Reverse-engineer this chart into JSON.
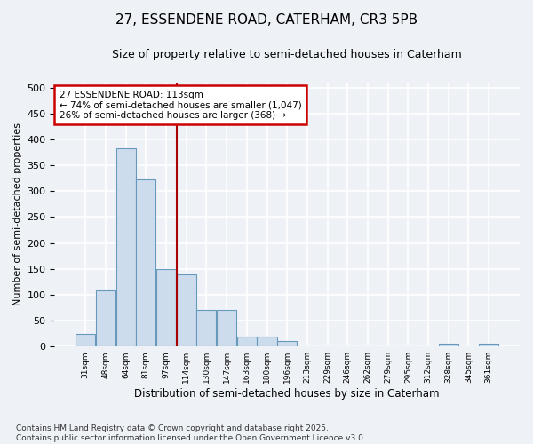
{
  "title_line1": "27, ESSENDENE ROAD, CATERHAM, CR3 5PB",
  "title_line2": "Size of property relative to semi-detached houses in Caterham",
  "xlabel": "Distribution of semi-detached houses by size in Caterham",
  "ylabel": "Number of semi-detached properties",
  "categories": [
    "31sqm",
    "48sqm",
    "64sqm",
    "81sqm",
    "97sqm",
    "114sqm",
    "130sqm",
    "147sqm",
    "163sqm",
    "180sqm",
    "196sqm",
    "213sqm",
    "229sqm",
    "246sqm",
    "262sqm",
    "279sqm",
    "295sqm",
    "312sqm",
    "328sqm",
    "345sqm",
    "361sqm"
  ],
  "values": [
    25,
    108,
    383,
    323,
    150,
    140,
    70,
    70,
    20,
    20,
    10,
    0,
    0,
    0,
    0,
    0,
    0,
    0,
    5,
    0,
    5
  ],
  "bar_color": "#ccdcec",
  "bar_edge_color": "#6699bb",
  "annotation_text_line1": "27 ESSENDENE ROAD: 113sqm",
  "annotation_text_line2": "← 74% of semi-detached houses are smaller (1,047)",
  "annotation_text_line3": "26% of semi-detached houses are larger (368) →",
  "footer_line1": "Contains HM Land Registry data © Crown copyright and database right 2025.",
  "footer_line2": "Contains public sector information licensed under the Open Government Licence v3.0.",
  "ylim": [
    0,
    510
  ],
  "yticks": [
    0,
    50,
    100,
    150,
    200,
    250,
    300,
    350,
    400,
    450,
    500
  ],
  "vline_x_index": 4.55,
  "bg_color": "#eef2f7",
  "grid_color": "#ffffff",
  "annotation_box_facecolor": "#ffffff",
  "annotation_box_edgecolor": "#cc0000",
  "vline_color": "#aa0000"
}
